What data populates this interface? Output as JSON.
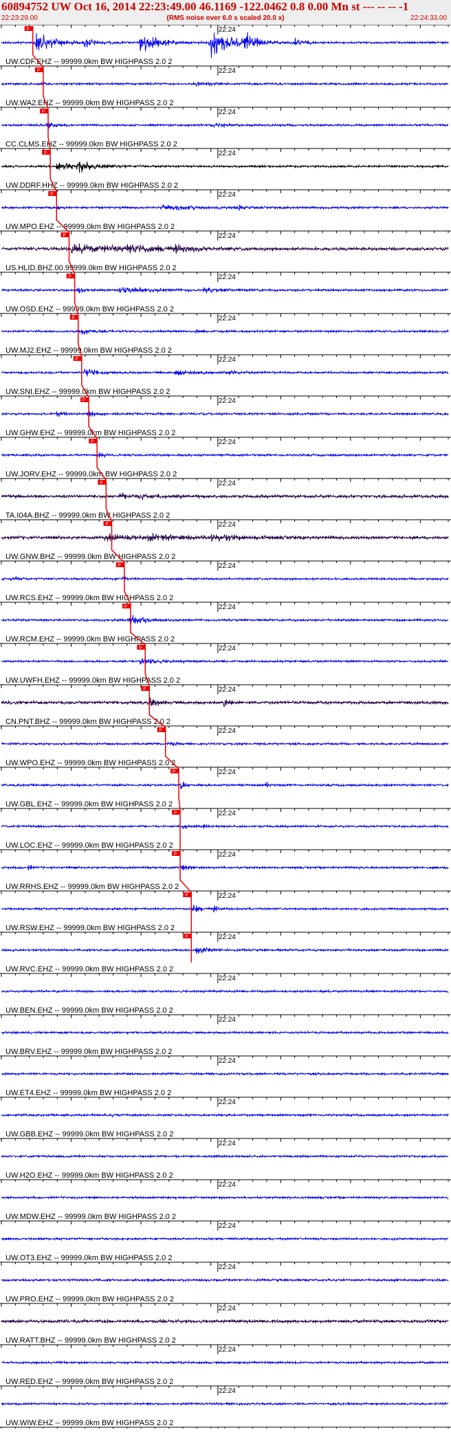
{
  "header": {
    "title": "60894752 UW Oct 16, 2014 22:23:49.00   46.1169 -122.0462  0.8 0.00 Mn st --- -- --  -1",
    "start_time": "22:23:29.00",
    "noise_note": "(RMS noise over 6.0 s scaled 20.0 x)",
    "end_time": "22:24:33.00"
  },
  "chart_data": {
    "type": "line",
    "time_range": [
      "22:23:29.00",
      "22:24:33.00"
    ],
    "minute_mark": "22:24",
    "pick_marker": "P",
    "colors": {
      "blue_trace": "#0000ee",
      "dark_trace": "#220044",
      "black_trace": "#000000",
      "pick": "#ee0000",
      "axis": "#000000"
    },
    "traces": [
      {
        "label": "UW.CDF.EHZ -- 99999.0km BW  HIGHPASS  2.0  2",
        "color": "blue",
        "pick_time": 4.5,
        "events": [
          [
            5,
            3,
            16
          ],
          [
            12,
            1.5,
            7
          ],
          [
            20,
            2.5,
            20
          ],
          [
            30,
            3,
            24
          ],
          [
            35,
            1.5,
            18
          ],
          [
            42,
            1.2,
            6
          ]
        ]
      },
      {
        "label": "UW.WA2.EHZ -- 99999.0km BW  HIGHPASS  2.0  2",
        "color": "blue",
        "pick_time": 6.0,
        "events": [
          [
            6,
            0.6,
            2.5
          ],
          [
            28,
            2,
            3
          ]
        ]
      },
      {
        "label": "CC.CLMS.EHZ -- 99999.0km BW  HIGHPASS  2.0  2",
        "color": "blue",
        "pick_time": 6.7,
        "events": [
          [
            6.7,
            1.5,
            4
          ],
          [
            30,
            2,
            3
          ]
        ]
      },
      {
        "label": "UW.DDRF.HHZ -- 99999.0km BW  HIGHPASS  2.0  2",
        "color": "black",
        "pick_time": 7.0,
        "events": [
          [
            8,
            5,
            5
          ],
          [
            11,
            2,
            7
          ]
        ]
      },
      {
        "label": "UW.MPO.EHZ -- 99999.0km BW  HIGHPASS  2.0  2",
        "color": "blue",
        "pick_time": 7.9,
        "events": [
          [
            8,
            0.5,
            3
          ],
          [
            23,
            6,
            3.5
          ],
          [
            34,
            1,
            3
          ]
        ]
      },
      {
        "label": "US.HLID.BHZ.00.99999.0km BW  HIGHPASS  2.0  2",
        "color": "dark",
        "pick_time": 9.7,
        "events": [
          [
            10,
            10,
            6
          ],
          [
            18,
            5,
            5
          ],
          [
            25,
            1.5,
            5
          ]
        ]
      },
      {
        "label": "UW.OSD.EHZ -- 99999.0km BW  HIGHPASS  2.0  2",
        "color": "blue",
        "pick_time": 10.5,
        "events": [
          [
            11,
            1,
            5
          ],
          [
            17,
            4,
            5
          ],
          [
            29,
            3,
            3
          ]
        ]
      },
      {
        "label": "UW.MJ2.EHZ -- 99999.0km BW  HIGHPASS  2.0  2",
        "color": "blue",
        "pick_time": 11.0,
        "events": [
          [
            11.5,
            1.5,
            5
          ],
          [
            28,
            1.5,
            2.5
          ]
        ]
      },
      {
        "label": "UW.SNI.EHZ -- 99999.0km BW  HIGHPASS  2.0  2",
        "color": "blue",
        "pick_time": 11.5,
        "events": [
          [
            12,
            2,
            6
          ],
          [
            25,
            2.5,
            5
          ],
          [
            32,
            2,
            4
          ]
        ]
      },
      {
        "label": "UW.GHW.EHZ -- 99999.0km BW  HIGHPASS  2.0  2",
        "color": "blue",
        "pick_time": 12.5,
        "events": [
          [
            8,
            1,
            4
          ],
          [
            12.5,
            1.5,
            5
          ]
        ]
      },
      {
        "label": "UW.JORV.EHZ -- 99999.0km BW  HIGHPASS  2.0  2",
        "color": "blue",
        "pick_time": 13.7,
        "events": [
          [
            14,
            1,
            3
          ]
        ]
      },
      {
        "label": "TA.I04A.BHZ -- 99999.0km BW  HIGHPASS  2.0  2",
        "color": "dark",
        "pick_time": 15.0,
        "events": [
          [
            17,
            4,
            3
          ],
          [
            20,
            1,
            3
          ]
        ]
      },
      {
        "label": "UW.GNW.BHZ -- 99999.0km BW  HIGHPASS  2.0  2",
        "color": "dark",
        "pick_time": 15.8,
        "events": [
          [
            15,
            3,
            5
          ],
          [
            21,
            6,
            5
          ],
          [
            30,
            5,
            4
          ]
        ]
      },
      {
        "label": "UW.RCS.EHZ -- 99999.0km BW  HIGHPASS  2.0  2",
        "color": "blue",
        "pick_time": 17.6,
        "events": [
          [
            1.5,
            1,
            3
          ],
          [
            17.5,
            0.5,
            4
          ]
        ]
      },
      {
        "label": "UW.RCM.EHZ -- 99999.0km BW  HIGHPASS  2.0  2",
        "color": "blue",
        "pick_time": 18.5,
        "events": [
          [
            18.5,
            2,
            10
          ]
        ]
      },
      {
        "label": "UW.UWFH.EHZ -- 99999.0km BW  HIGHPASS  2.0  2",
        "color": "blue",
        "pick_time": 20.6,
        "events": [
          [
            20,
            3,
            5
          ]
        ]
      },
      {
        "label": "CN.PNT.BHZ -- 99999.0km BW  HIGHPASS  2.0  2",
        "color": "dark",
        "pick_time": 21.2,
        "events": [
          [
            21.4,
            1,
            9
          ],
          [
            32,
            0.6,
            8
          ]
        ]
      },
      {
        "label": "UW.WPO.EHZ -- 99999.0km BW  HIGHPASS  2.0  2",
        "color": "blue",
        "pick_time": 23.5,
        "events": [
          [
            24,
            1,
            3
          ]
        ]
      },
      {
        "label": "UW.GBL.EHZ -- 99999.0km BW  HIGHPASS  2.0  2",
        "color": "blue",
        "pick_time": 25.4,
        "events": [
          [
            25.8,
            0.5,
            8
          ],
          [
            38,
            0.5,
            5
          ]
        ]
      },
      {
        "label": "UW.LOC.EHZ -- 99999.0km BW  HIGHPASS  2.0  2",
        "color": "blue",
        "pick_time": 25.6,
        "events": [
          [
            26,
            0.5,
            5
          ],
          [
            29,
            0.5,
            3
          ]
        ]
      },
      {
        "label": "UW.RRHS.EHZ -- 99999.0km BW  HIGHPASS  2.0  2",
        "color": "blue",
        "pick_time": 25.6,
        "events": [
          [
            4,
            0.3,
            5
          ],
          [
            26,
            0.8,
            6
          ]
        ]
      },
      {
        "label": "UW.RSW.EHZ -- 99999.0km BW  HIGHPASS  2.0  2",
        "color": "blue",
        "pick_time": 27.2,
        "events": [
          [
            27.5,
            1,
            7
          ],
          [
            30.5,
            0.5,
            5
          ]
        ]
      },
      {
        "label": "UW.RVC.EHZ -- 99999.0km BW  HIGHPASS  2.0  2",
        "color": "blue",
        "pick_time": 27.2,
        "events": [
          [
            28,
            2,
            5
          ]
        ]
      },
      {
        "label": "UW.BEN.EHZ -- 99999.0km BW  HIGHPASS  2.0  2",
        "color": "blue",
        "pick_time": null,
        "events": []
      },
      {
        "label": "UW.BRV.EHZ -- 99999.0km BW  HIGHPASS  2.0  2",
        "color": "blue",
        "pick_time": null,
        "events": []
      },
      {
        "label": "UW.ET4.EHZ -- 99999.0km BW  HIGHPASS  2.0  2",
        "color": "blue",
        "pick_time": null,
        "events": []
      },
      {
        "label": "UW.GBB.EHZ -- 99999.0km BW  HIGHPASS  2.0  2",
        "color": "blue",
        "pick_time": null,
        "events": [
          [
            16,
            1.5,
            1.5
          ]
        ]
      },
      {
        "label": "UW.H2O.EHZ -- 99999.0km BW  HIGHPASS  2.0  2",
        "color": "blue",
        "pick_time": null,
        "events": []
      },
      {
        "label": "UW.MDW.EHZ -- 99999.0km BW  HIGHPASS  2.0  2",
        "color": "blue",
        "pick_time": null,
        "events": []
      },
      {
        "label": "UW.OT3.EHZ -- 99999.0km BW  HIGHPASS  2.0  2",
        "color": "blue",
        "pick_time": null,
        "events": []
      },
      {
        "label": "UW.PRO.EHZ -- 99999.0km BW  HIGHPASS  2.0  2",
        "color": "blue",
        "pick_time": null,
        "events": [
          [
            20,
            1.5,
            1.5
          ]
        ]
      },
      {
        "label": "UW.RATT.BHZ -- 99999.0km BW  HIGHPASS  2.0  2",
        "color": "dark",
        "pick_time": null,
        "events": []
      },
      {
        "label": "UW.RED.EHZ -- 99999.0km BW  HIGHPASS  2.0  2",
        "color": "blue",
        "pick_time": null,
        "events": []
      },
      {
        "label": "UW.WIW.EHZ -- 99999.0km BW  HIGHPASS  2.0  2",
        "color": "blue",
        "pick_time": null,
        "events": []
      },
      {
        "label": "",
        "color": "blue",
        "pick_time": null,
        "events": []
      }
    ]
  }
}
